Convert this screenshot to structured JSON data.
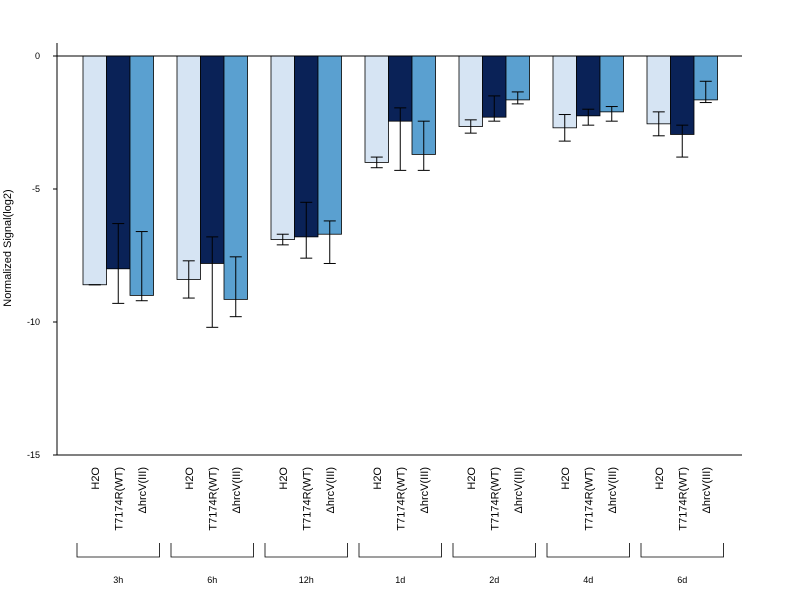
{
  "chart_data": {
    "type": "bar",
    "ylabel": "Normalized Signal(log2)",
    "ylim": [
      -15,
      0.5
    ],
    "yticks": [
      0,
      -5,
      -10,
      -15
    ],
    "yticklabels": [
      "0",
      "-5",
      "-10",
      "-15"
    ],
    "groups": [
      "3h",
      "6h",
      "12h",
      "1d",
      "2d",
      "4d",
      "6d"
    ],
    "series": [
      {
        "name": "H2O",
        "label": "H2O",
        "color": "#d6e4f3",
        "values": [
          -8.6,
          -8.4,
          -6.9,
          -4.0,
          -2.65,
          -2.7,
          -2.55
        ],
        "err_low": [
          -8.6,
          -9.1,
          -7.1,
          -4.2,
          -2.9,
          -3.2,
          -3.0
        ],
        "err_high": [
          -8.6,
          -7.7,
          -6.7,
          -3.8,
          -2.4,
          -2.2,
          -2.1
        ]
      },
      {
        "name": "T7174R(WT)",
        "label": "T7174R(WT)",
        "color": "#0a2257",
        "values": [
          -8.0,
          -7.8,
          -6.8,
          -2.45,
          -2.3,
          -2.25,
          -2.95
        ],
        "err_low": [
          -9.3,
          -10.2,
          -7.6,
          -4.3,
          -2.45,
          -2.6,
          -3.8
        ],
        "err_high": [
          -6.3,
          -6.8,
          -5.5,
          -1.95,
          -1.5,
          -2.0,
          -2.6
        ]
      },
      {
        "name": "ΔhrcV(III)",
        "label": "ΔhrcV(III)",
        "color": "#5aa0d0",
        "values": [
          -9.0,
          -9.15,
          -6.7,
          -3.7,
          -1.65,
          -2.1,
          -1.65
        ],
        "err_low": [
          -9.2,
          -9.8,
          -7.8,
          -4.3,
          -1.8,
          -2.45,
          -1.75
        ],
        "err_high": [
          -6.6,
          -7.55,
          -6.2,
          -2.45,
          -1.35,
          -1.9,
          -0.95
        ]
      }
    ]
  }
}
